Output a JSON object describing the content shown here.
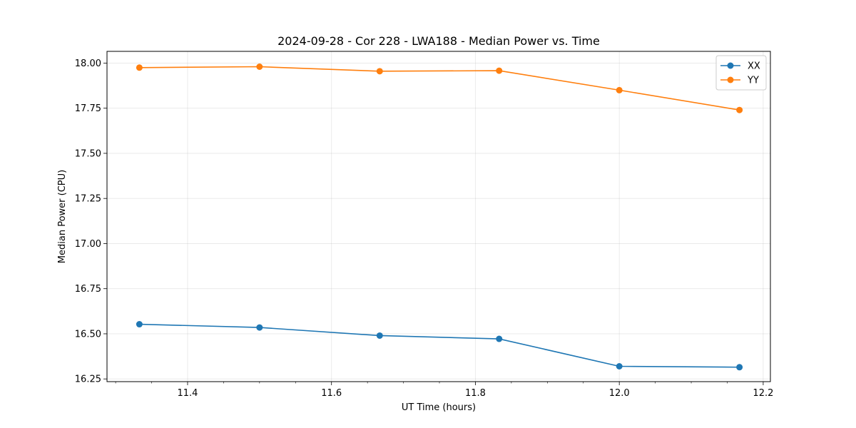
{
  "chart_data": {
    "type": "line",
    "title": "2024-09-28 - Cor 228 - LWA188 - Median Power vs. Time",
    "xlabel": "UT Time (hours)",
    "ylabel": "Median Power (CPU)",
    "xlim": [
      11.288,
      12.21
    ],
    "ylim": [
      16.235,
      18.065
    ],
    "x_ticks": [
      11.4,
      11.6,
      11.8,
      12.0,
      12.2
    ],
    "x_tick_labels": [
      "11.4",
      "11.6",
      "11.8",
      "12.0",
      "12.2"
    ],
    "x_minor_step": 0.05,
    "y_ticks": [
      16.25,
      16.5,
      16.75,
      17.0,
      17.25,
      17.5,
      17.75,
      18.0
    ],
    "y_tick_labels": [
      "16.25",
      "16.50",
      "16.75",
      "17.00",
      "17.25",
      "17.50",
      "17.75",
      "18.00"
    ],
    "grid": true,
    "legend_position": "top-right",
    "x": [
      11.333,
      11.5,
      11.667,
      11.833,
      12.0,
      12.167
    ],
    "series": [
      {
        "name": "XX",
        "color": "#1f77b4",
        "values": [
          16.553,
          16.535,
          16.49,
          16.472,
          16.32,
          16.315
        ]
      },
      {
        "name": "YY",
        "color": "#ff7f0e",
        "values": [
          17.975,
          17.98,
          17.955,
          17.958,
          17.85,
          17.74
        ]
      }
    ]
  }
}
